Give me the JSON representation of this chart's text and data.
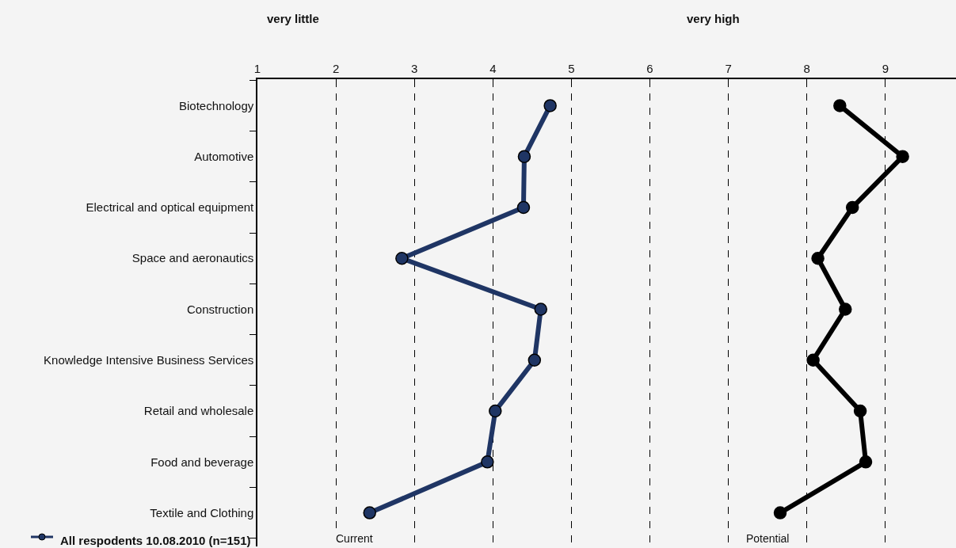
{
  "chart_data": {
    "type": "line",
    "orientation": "horizontal",
    "categories": [
      "Biotechnology",
      "Automotive",
      "Electrical and optical equipment",
      "Space and aeronautics",
      "Construction",
      "Knowledge Intensive Business Services",
      "Retail and wholesale",
      "Food and beverage",
      "Textile and Clothing"
    ],
    "series": [
      {
        "name": "Current",
        "color": "#1f3564",
        "values": [
          4.73,
          4.4,
          4.39,
          2.84,
          4.61,
          4.53,
          4.03,
          3.93,
          2.43
        ]
      },
      {
        "name": "Potential",
        "color": "#000000",
        "values": [
          8.42,
          9.22,
          8.58,
          8.14,
          8.49,
          8.08,
          8.68,
          8.75,
          7.66
        ]
      }
    ],
    "xlim": [
      1,
      9.9
    ],
    "xticks": [
      1,
      2,
      3,
      4,
      5,
      6,
      7,
      8,
      9
    ],
    "grid": "x",
    "marker": "circle",
    "line_style": "solid",
    "legend": false,
    "annotations": [
      "very little",
      "very high",
      "All respodents 10.08.2010 (n=151)"
    ]
  }
}
